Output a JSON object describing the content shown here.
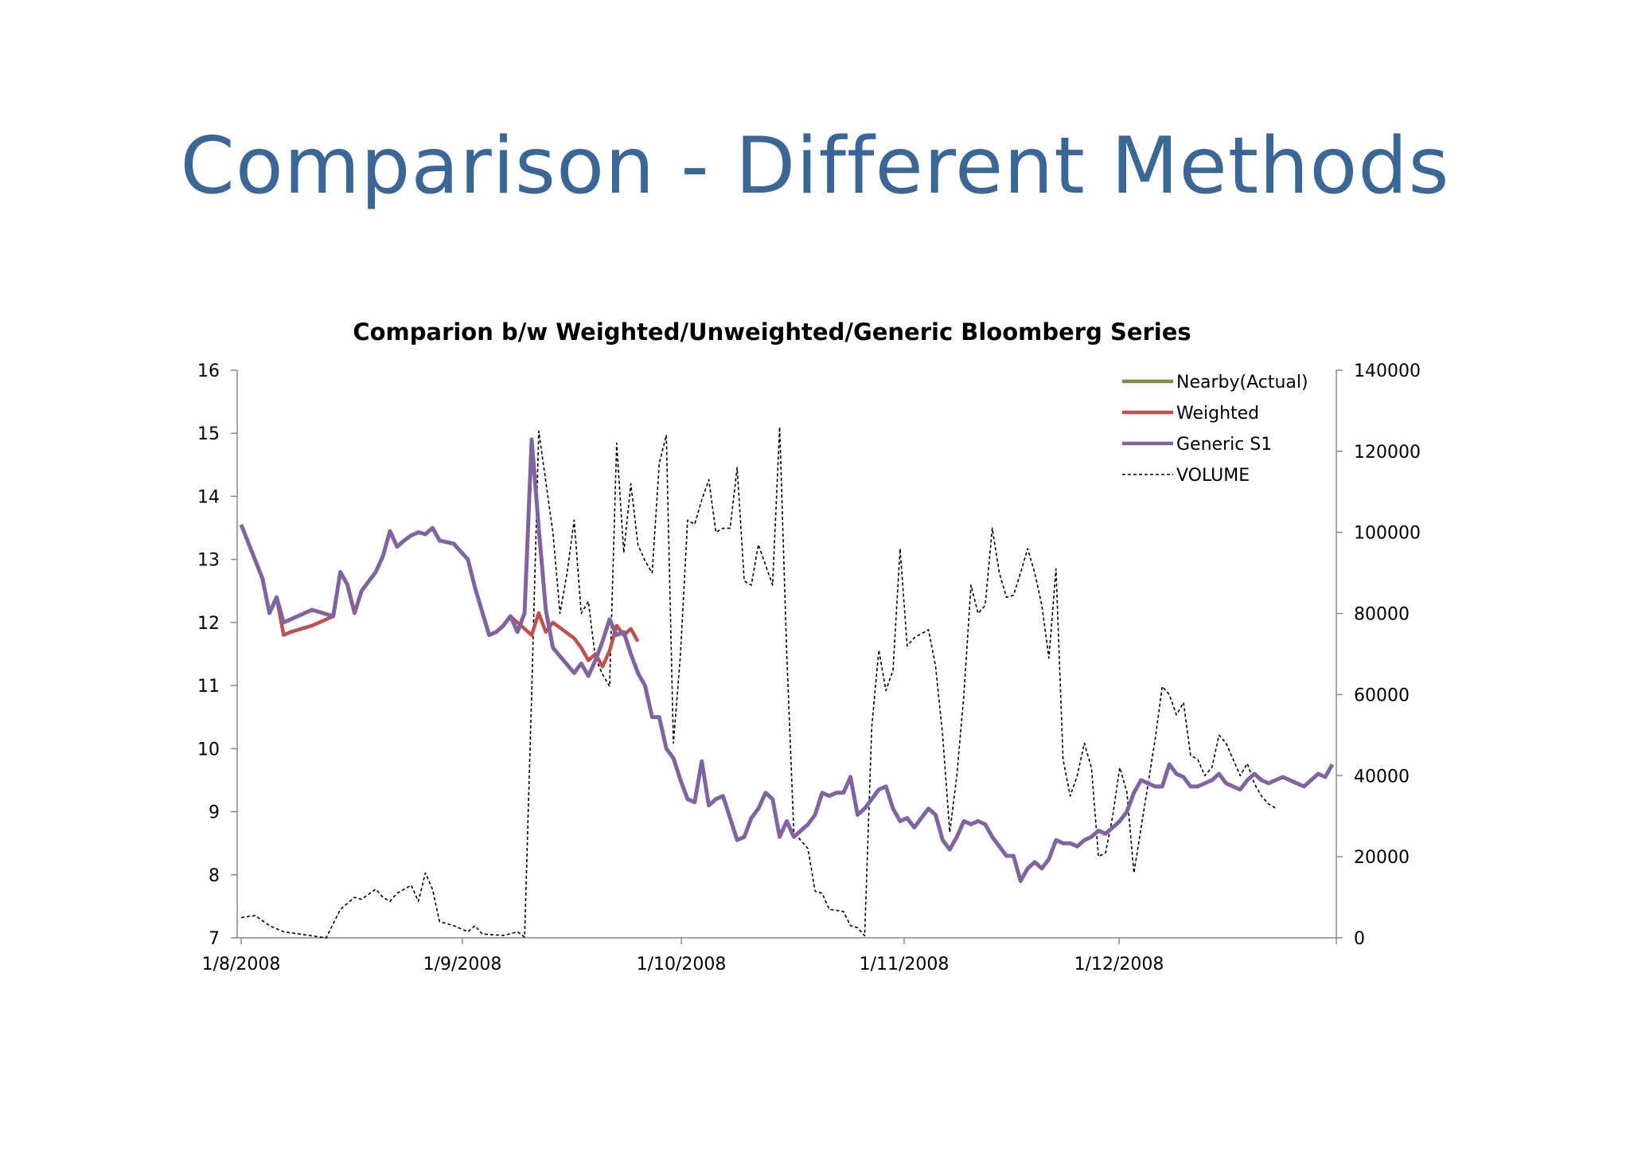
{
  "slide": {
    "title": "Comparison - Different Methods"
  },
  "chart_data": {
    "type": "line",
    "title": "Comparion b/w Weighted/Unweighted/Generic Bloomberg Series",
    "xlabel": "",
    "ylabel": "",
    "x_tick_labels": [
      "1/8/2008",
      "1/9/2008",
      "1/10/2008",
      "1/11/2008",
      "1/12/2008"
    ],
    "ylim_left": [
      7,
      16
    ],
    "yticks_left": [
      7,
      8,
      9,
      10,
      11,
      12,
      13,
      14,
      15,
      16
    ],
    "ylim_right": [
      0,
      140000
    ],
    "yticks_right": [
      0,
      20000,
      40000,
      60000,
      80000,
      100000,
      120000,
      140000
    ],
    "legend_position": "top-right",
    "grid": false,
    "series": [
      {
        "name": "Nearby(Actual)",
        "axis": "left",
        "color": "#77933c",
        "style": "solid"
      },
      {
        "name": "Weighted",
        "axis": "left",
        "color": "#c0504d",
        "style": "solid",
        "x": [
          0,
          3,
          4,
          5,
          6,
          7,
          10,
          13,
          14,
          15,
          16,
          17,
          19,
          20,
          21,
          22,
          23,
          24,
          25,
          26,
          27,
          28,
          30,
          32,
          33,
          35,
          36,
          37,
          38,
          41,
          42,
          43,
          44,
          47,
          48,
          49,
          50,
          51,
          52,
          53,
          54,
          55,
          56
        ],
        "y": [
          13.55,
          12.7,
          12.15,
          12.4,
          11.8,
          11.85,
          11.95,
          12.1,
          12.8,
          12.6,
          12.15,
          12.5,
          12.8,
          13.05,
          13.45,
          13.2,
          13.3,
          13.38,
          13.43,
          13.4,
          13.5,
          13.3,
          13.25,
          13.0,
          12.55,
          11.8,
          11.85,
          11.95,
          12.1,
          11.8,
          12.15,
          11.85,
          12.0,
          11.75,
          11.6,
          11.4,
          11.5,
          11.3,
          11.55,
          11.95,
          11.8,
          11.9,
          11.7
        ]
      },
      {
        "name": "Generic S1",
        "axis": "left",
        "color": "#8064a2",
        "style": "solid",
        "x": [
          0,
          3,
          4,
          5,
          6,
          7,
          10,
          13,
          14,
          15,
          16,
          17,
          19,
          20,
          21,
          22,
          23,
          24,
          25,
          26,
          27,
          28,
          30,
          32,
          33,
          35,
          36,
          37,
          38,
          39,
          40,
          41,
          42,
          43,
          44,
          47,
          48,
          49,
          50,
          51,
          52,
          53,
          54,
          55,
          56,
          57,
          58,
          59,
          60,
          61,
          62,
          63,
          64,
          65,
          66,
          67,
          68,
          69,
          70,
          71,
          72,
          73,
          74,
          75,
          76,
          77,
          78,
          79,
          80,
          81,
          82,
          83,
          84,
          85,
          86,
          87,
          88,
          89,
          90,
          91,
          92,
          93,
          94,
          95,
          96,
          97,
          98,
          99,
          100,
          101,
          102,
          103,
          104,
          105,
          106,
          107,
          108,
          109,
          110,
          111,
          112,
          113,
          114,
          115,
          116,
          117,
          118,
          119,
          120,
          121,
          122,
          123,
          124,
          125,
          126,
          127,
          128,
          129,
          130,
          131,
          132,
          133,
          134,
          135,
          136,
          137,
          138,
          139,
          140,
          141,
          142,
          143,
          144,
          145,
          146,
          147,
          148,
          149,
          150,
          151,
          152,
          153,
          154
        ],
        "y": [
          13.55,
          12.7,
          12.15,
          12.4,
          12.0,
          12.05,
          12.2,
          12.1,
          12.8,
          12.6,
          12.15,
          12.5,
          12.8,
          13.05,
          13.45,
          13.2,
          13.3,
          13.38,
          13.43,
          13.4,
          13.5,
          13.3,
          13.25,
          13.0,
          12.55,
          11.8,
          11.85,
          11.95,
          12.1,
          11.85,
          12.15,
          14.9,
          13.5,
          12.2,
          11.6,
          11.2,
          11.35,
          11.15,
          11.4,
          11.7,
          12.05,
          11.8,
          11.85,
          11.5,
          11.2,
          11.0,
          10.5,
          10.5,
          10.0,
          9.85,
          9.5,
          9.2,
          9.15,
          9.8,
          9.1,
          9.2,
          9.25,
          8.9,
          8.55,
          8.6,
          8.9,
          9.05,
          9.3,
          9.2,
          8.6,
          8.85,
          8.6,
          8.7,
          8.8,
          8.95,
          9.3,
          9.25,
          9.3,
          9.3,
          9.55,
          8.95,
          9.05,
          9.2,
          9.35,
          9.4,
          9.05,
          8.85,
          8.9,
          8.75,
          8.9,
          9.05,
          8.95,
          8.55,
          8.4,
          8.6,
          8.85,
          8.8,
          8.85,
          8.8,
          8.6,
          8.45,
          8.3,
          8.3,
          7.9,
          8.1,
          8.2,
          8.1,
          8.25,
          8.55,
          8.5,
          8.5,
          8.45,
          8.55,
          8.6,
          8.7,
          8.65,
          8.75,
          8.85,
          9.0,
          9.3,
          9.5,
          9.45,
          9.4,
          9.4,
          9.75,
          9.6,
          9.55,
          9.4,
          9.4,
          9.45,
          9.5,
          9.6,
          9.45,
          9.4,
          9.35,
          9.5,
          9.6,
          9.5,
          9.45,
          9.5,
          9.55,
          9.5,
          9.45,
          9.4,
          9.5,
          9.6,
          9.55,
          9.75
        ]
      },
      {
        "name": "VOLUME",
        "axis": "right",
        "color": "#000000",
        "style": "dashed",
        "x": [
          0,
          2,
          4,
          6,
          8,
          10,
          12,
          14,
          15,
          16,
          17,
          19,
          20,
          21,
          22,
          24,
          25,
          26,
          27,
          28,
          30,
          32,
          33,
          34,
          35,
          36,
          37,
          38,
          39,
          40,
          41,
          42,
          44,
          45,
          46,
          47,
          48,
          49,
          50,
          51,
          52,
          53,
          54,
          55,
          56,
          57,
          58,
          59,
          60,
          61,
          62,
          63,
          64,
          65,
          66,
          67,
          68,
          69,
          70,
          71,
          72,
          73,
          74,
          75,
          76,
          77,
          78,
          79,
          80,
          81,
          82,
          83,
          84,
          85,
          86,
          87,
          88,
          89,
          90,
          91,
          92,
          93,
          94,
          95,
          96,
          97,
          98,
          99,
          100,
          101,
          102,
          103,
          104,
          105,
          106,
          107,
          108,
          109,
          110,
          111,
          112,
          113,
          114,
          115,
          116,
          117,
          118,
          119,
          120,
          121,
          122,
          123,
          124,
          125,
          126,
          127,
          128,
          129,
          130,
          131,
          132,
          133,
          134,
          135,
          136,
          137,
          138,
          139,
          140,
          141,
          142,
          143,
          144,
          145,
          146
        ],
        "y": [
          5000,
          5500,
          3000,
          1500,
          1000,
          500,
          0,
          7000,
          8500,
          10000,
          9500,
          12000,
          10000,
          9000,
          11000,
          13000,
          9000,
          16000,
          12000,
          4000,
          3000,
          1500,
          3000,
          1000,
          800,
          700,
          600,
          1000,
          1500,
          200,
          60000,
          125000,
          100000,
          80000,
          90000,
          103000,
          80000,
          83000,
          69000,
          65000,
          62000,
          122000,
          95000,
          112000,
          97000,
          93000,
          90000,
          117000,
          124000,
          48000,
          70000,
          103000,
          102000,
          108000,
          113000,
          100000,
          101000,
          101000,
          116000,
          88000,
          87000,
          97000,
          92000,
          87000,
          126000,
          70000,
          26000,
          24000,
          22000,
          11500,
          11000,
          7000,
          6800,
          6500,
          3000,
          2500,
          500,
          52000,
          71000,
          61000,
          66000,
          96000,
          72000,
          74000,
          75000,
          76000,
          67000,
          50000,
          26000,
          40000,
          60000,
          87000,
          80000,
          82000,
          101000,
          90000,
          84000,
          84500,
          90000,
          96000,
          90000,
          82000,
          69000,
          91000,
          44000,
          35000,
          40000,
          48000,
          42000,
          20000,
          21000,
          30000,
          42000,
          36000,
          16000,
          27000,
          38000,
          49000,
          62000,
          60000,
          55000,
          58000,
          45000,
          44000,
          40000,
          42000,
          50000,
          48000,
          44000,
          40000,
          43000,
          38000,
          35000,
          33000,
          32000
        ]
      }
    ]
  }
}
